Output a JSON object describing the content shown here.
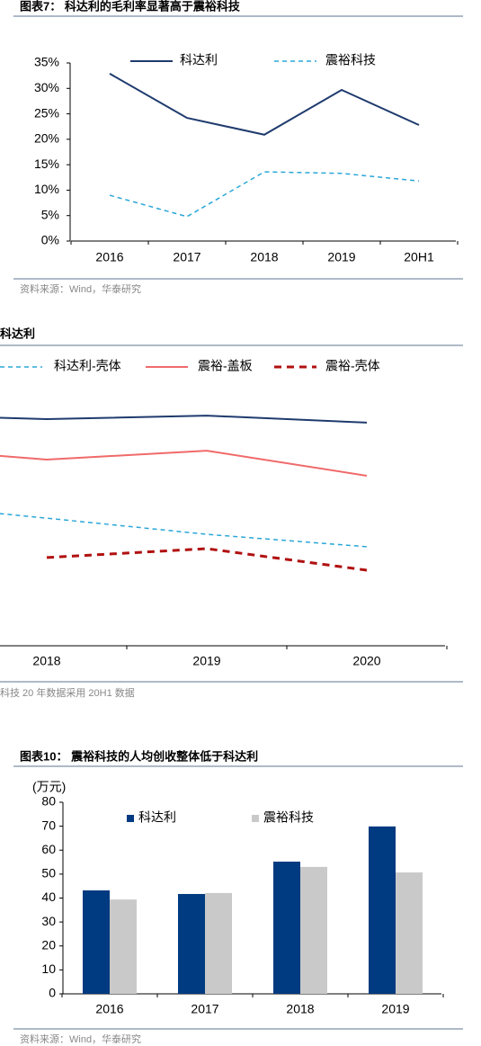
{
  "chart_data": [
    {
      "type": "line",
      "title": "图表7：  科达利的毛利率显著高于震裕科技",
      "categories": [
        "2016",
        "2017",
        "2018",
        "2019",
        "20H1"
      ],
      "series": [
        {
          "name": "科达利",
          "color": "#1f3b6e",
          "style": "solid",
          "values": [
            32.9,
            24.2,
            20.9,
            29.7,
            22.8
          ]
        },
        {
          "name": "震裕科技",
          "color": "#2aa7d8",
          "style": "dashed",
          "values": [
            9.0,
            4.8,
            13.6,
            13.3,
            11.8
          ]
        }
      ],
      "ylim": [
        0,
        35
      ],
      "yticks": [
        {
          "value": 0,
          "label": "0%"
        },
        {
          "value": 5,
          "label": "5%"
        },
        {
          "value": 10,
          "label": "10%"
        },
        {
          "value": 15,
          "label": "15%"
        },
        {
          "value": 20,
          "label": "20%"
        },
        {
          "value": 25,
          "label": "25%"
        },
        {
          "value": 30,
          "label": "30%"
        },
        {
          "value": 35,
          "label": "35%"
        }
      ],
      "source": "资料来源：Wind，华泰研究"
    },
    {
      "type": "line",
      "title": "科达利",
      "categories": [
        null,
        "2018",
        "2019",
        "2020"
      ],
      "series": [
        {
          "color": "#1f3b6e",
          "style": "solid",
          "values": [
            85.7,
            84.0,
            85.3,
            82.7
          ]
        },
        {
          "name": "科达利-壳体",
          "color": "#2aa7d8",
          "style": "dashed",
          "values": [
            53.0,
            47.3,
            41.3,
            36.7
          ]
        },
        {
          "name": "震裕-盖板",
          "color": "#f06a6a",
          "style": "solid",
          "values": [
            73.7,
            69.0,
            72.3,
            63.0
          ]
        },
        {
          "name": "震裕-壳体",
          "color": "#b01010",
          "style": "bold-dashed",
          "values": [
            null,
            32.7,
            36.0,
            28.0
          ]
        }
      ],
      "ylim": [
        0,
        100
      ],
      "note": "科技 20 年数据采用 20H1 数据"
    },
    {
      "type": "bar",
      "title": "图表10：  震裕科技的人均创收整体低于科达利",
      "ylabel": "(万元)",
      "categories": [
        "2016",
        "2017",
        "2018",
        "2019"
      ],
      "series": [
        {
          "name": "科达利",
          "color": "#003a80",
          "values": [
            43.2,
            41.7,
            55.2,
            69.9
          ]
        },
        {
          "name": "震裕科技",
          "color": "#c9c9c9",
          "values": [
            39.4,
            42.1,
            53.0,
            50.7
          ]
        }
      ],
      "ylim": [
        0,
        80
      ],
      "yticks": [
        0,
        10,
        20,
        30,
        40,
        50,
        60,
        70,
        80
      ],
      "source": "资料来源：Wind，华泰研究"
    }
  ]
}
